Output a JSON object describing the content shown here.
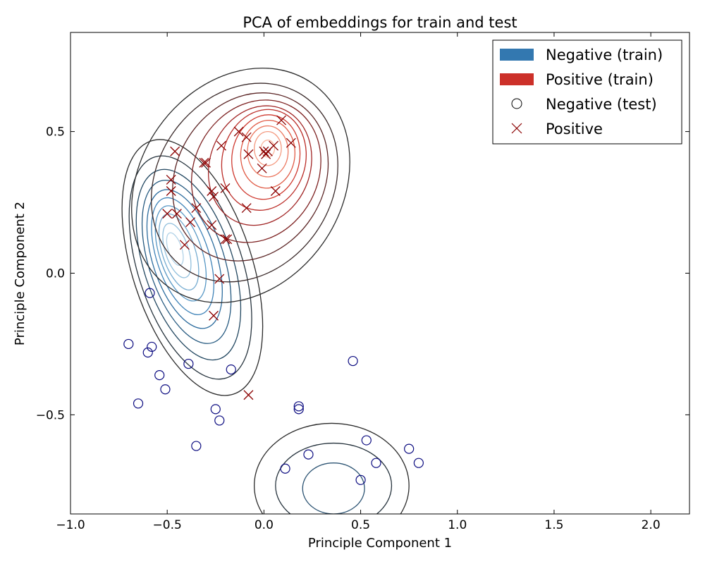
{
  "chart_data": {
    "type": "scatter",
    "title": "PCA of embeddings for train and test",
    "xlabel": "Principle Component 1",
    "ylabel": "Principle Component 2",
    "xlim": [
      -1.0,
      2.2
    ],
    "ylim": [
      -0.85,
      0.85
    ],
    "xticks": [
      {
        "value": -1.0,
        "label": "−1.0"
      },
      {
        "value": -0.5,
        "label": "−0.5"
      },
      {
        "value": 0.0,
        "label": "0.0"
      },
      {
        "value": 0.5,
        "label": "0.5"
      },
      {
        "value": 1.0,
        "label": "1.0"
      },
      {
        "value": 1.5,
        "label": "1.5"
      },
      {
        "value": 2.0,
        "label": "2.0"
      }
    ],
    "yticks": [
      {
        "value": -0.5,
        "label": "−0.5"
      },
      {
        "value": 0.0,
        "label": "0.0"
      },
      {
        "value": 0.5,
        "label": "0.5"
      }
    ],
    "grid": false,
    "legend_position": "top-right",
    "legend": [
      {
        "label": "Negative (train)",
        "kind": "patch",
        "color": "#3378b0"
      },
      {
        "label": "Positive (train)",
        "kind": "patch",
        "color": "#cc3029"
      },
      {
        "label": "Negative (test)",
        "kind": "circle",
        "color": "#000000"
      },
      {
        "label": "Positive",
        "kind": "cross",
        "color": "#8b0000"
      }
    ],
    "density_layers": [
      {
        "name": "Negative (train)",
        "colors": [
          "#2b2b2b",
          "#26333d",
          "#224760",
          "#265a80",
          "#2c6c9e",
          "#3f83b8",
          "#5797c4",
          "#74abd0",
          "#92c0dd",
          "#b2d3e8"
        ],
        "levels": [
          {
            "cx": -0.37,
            "cy": 0.02,
            "rx": 0.31,
            "ry": 0.47,
            "rot": -18
          },
          {
            "cx": -0.38,
            "cy": 0.02,
            "rx": 0.27,
            "ry": 0.41,
            "rot": -18
          },
          {
            "cx": -0.39,
            "cy": 0.03,
            "rx": 0.23,
            "ry": 0.35,
            "rot": -18
          },
          {
            "cx": -0.4,
            "cy": 0.04,
            "rx": 0.195,
            "ry": 0.3,
            "rot": -18
          },
          {
            "cx": -0.41,
            "cy": 0.05,
            "rx": 0.165,
            "ry": 0.255,
            "rot": -18
          },
          {
            "cx": -0.42,
            "cy": 0.06,
            "rx": 0.135,
            "ry": 0.215,
            "rot": -18
          },
          {
            "cx": -0.43,
            "cy": 0.07,
            "rx": 0.11,
            "ry": 0.175,
            "rot": -18
          },
          {
            "cx": -0.44,
            "cy": 0.075,
            "rx": 0.085,
            "ry": 0.14,
            "rot": -18
          },
          {
            "cx": -0.45,
            "cy": 0.08,
            "rx": 0.06,
            "ry": 0.1,
            "rot": -18
          },
          {
            "cx": -0.46,
            "cy": 0.085,
            "rx": 0.035,
            "ry": 0.06,
            "rot": -18
          }
        ]
      },
      {
        "name": "Negative (train) cluster 2",
        "colors": [
          "#2b2b2b",
          "#26333d",
          "#2e5574"
        ],
        "levels": [
          {
            "cx": 0.35,
            "cy": -0.75,
            "rx": 0.4,
            "ry": 0.22,
            "rot": 0
          },
          {
            "cx": 0.36,
            "cy": -0.75,
            "rx": 0.3,
            "ry": 0.15,
            "rot": 0
          },
          {
            "cx": 0.36,
            "cy": -0.76,
            "rx": 0.16,
            "ry": 0.09,
            "rot": 0
          }
        ]
      },
      {
        "name": "Positive (train)",
        "colors": [
          "#2b2b2b",
          "#3a2a2a",
          "#5c2626",
          "#7e2222",
          "#a12424",
          "#bb2d28",
          "#cf3a30",
          "#e05a45",
          "#ec7a62",
          "#f49a80",
          "#f9b9a1"
        ],
        "levels": [
          {
            "cx": -0.12,
            "cy": 0.31,
            "rx": 0.52,
            "ry": 0.44,
            "rot": 35
          },
          {
            "cx": -0.1,
            "cy": 0.32,
            "rx": 0.45,
            "ry": 0.37,
            "rot": 35
          },
          {
            "cx": -0.07,
            "cy": 0.34,
            "rx": 0.38,
            "ry": 0.31,
            "rot": 32
          },
          {
            "cx": -0.04,
            "cy": 0.36,
            "rx": 0.32,
            "ry": 0.26,
            "rot": 28
          },
          {
            "cx": -0.02,
            "cy": 0.38,
            "rx": 0.26,
            "ry": 0.215,
            "rot": 20
          },
          {
            "cx": 0.0,
            "cy": 0.4,
            "rx": 0.215,
            "ry": 0.18,
            "rot": 15
          },
          {
            "cx": 0.01,
            "cy": 0.41,
            "rx": 0.175,
            "ry": 0.15,
            "rot": 10
          },
          {
            "cx": 0.02,
            "cy": 0.42,
            "rx": 0.14,
            "ry": 0.12,
            "rot": 5
          },
          {
            "cx": 0.02,
            "cy": 0.43,
            "rx": 0.105,
            "ry": 0.09,
            "rot": 0
          },
          {
            "cx": 0.02,
            "cy": 0.44,
            "rx": 0.07,
            "ry": 0.06,
            "rot": 0
          },
          {
            "cx": 0.02,
            "cy": 0.44,
            "rx": 0.035,
            "ry": 0.03,
            "rot": 0
          }
        ]
      }
    ],
    "series": [
      {
        "name": "Negative (test)",
        "marker": "circle",
        "color": "#0b0b80",
        "points": [
          [
            -0.59,
            -0.07
          ],
          [
            -0.7,
            -0.25
          ],
          [
            -0.6,
            -0.28
          ],
          [
            -0.58,
            -0.26
          ],
          [
            -0.54,
            -0.36
          ],
          [
            -0.51,
            -0.41
          ],
          [
            -0.65,
            -0.46
          ],
          [
            -0.39,
            -0.32
          ],
          [
            -0.17,
            -0.34
          ],
          [
            -0.25,
            -0.48
          ],
          [
            -0.23,
            -0.52
          ],
          [
            -0.35,
            -0.61
          ],
          [
            0.46,
            -0.31
          ],
          [
            0.18,
            -0.48
          ],
          [
            0.18,
            -0.47
          ],
          [
            0.11,
            -0.69
          ],
          [
            0.23,
            -0.64
          ],
          [
            0.53,
            -0.59
          ],
          [
            0.58,
            -0.67
          ],
          [
            0.5,
            -0.73
          ],
          [
            0.75,
            -0.62
          ],
          [
            0.8,
            -0.67
          ]
        ]
      },
      {
        "name": "Positive",
        "marker": "cross",
        "color": "#8b0000",
        "points": [
          [
            -0.46,
            0.43
          ],
          [
            -0.48,
            0.33
          ],
          [
            -0.48,
            0.29
          ],
          [
            -0.5,
            0.21
          ],
          [
            -0.45,
            0.21
          ],
          [
            -0.38,
            0.18
          ],
          [
            -0.41,
            0.1
          ],
          [
            -0.35,
            0.23
          ],
          [
            -0.31,
            0.39
          ],
          [
            -0.3,
            0.39
          ],
          [
            -0.27,
            0.29
          ],
          [
            -0.26,
            0.27
          ],
          [
            -0.27,
            0.17
          ],
          [
            -0.22,
            0.45
          ],
          [
            -0.2,
            0.3
          ],
          [
            -0.19,
            0.12
          ],
          [
            -0.2,
            0.12
          ],
          [
            -0.13,
            0.5
          ],
          [
            -0.09,
            0.48
          ],
          [
            -0.08,
            0.42
          ],
          [
            0.0,
            0.43
          ],
          [
            0.01,
            0.42
          ],
          [
            0.02,
            0.43
          ],
          [
            -0.01,
            0.37
          ],
          [
            0.05,
            0.45
          ],
          [
            0.09,
            0.54
          ],
          [
            0.14,
            0.46
          ],
          [
            0.06,
            0.29
          ],
          [
            -0.09,
            0.23
          ],
          [
            -0.23,
            -0.02
          ],
          [
            -0.26,
            -0.15
          ],
          [
            -0.08,
            -0.43
          ]
        ]
      }
    ]
  }
}
